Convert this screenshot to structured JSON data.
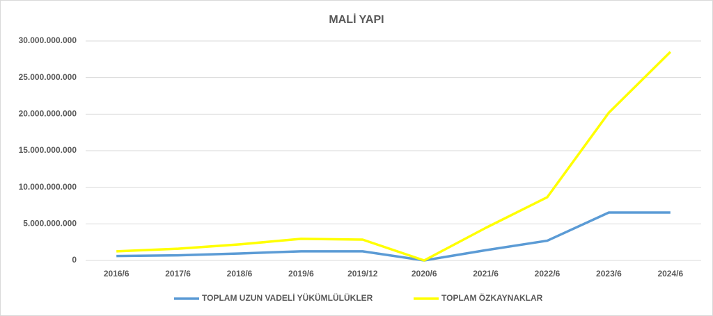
{
  "chart_data": {
    "type": "line",
    "title": "MALİ YAPI",
    "categories": [
      "2016/6",
      "2017/6",
      "2018/6",
      "2019/6",
      "2019/12",
      "2020/6",
      "2021/6",
      "2022/6",
      "2023/6",
      "2024/6"
    ],
    "series": [
      {
        "name": "TOPLAM UZUN VADELİ YÜKÜMLÜLÜKLER",
        "color": "#5b9bd5",
        "values": [
          600000000,
          700000000,
          950000000,
          1250000000,
          1250000000,
          0,
          1400000000,
          2700000000,
          6550000000,
          6550000000
        ]
      },
      {
        "name": "TOPLAM ÖZKAYNAKLAR",
        "color": "#ffff00",
        "values": [
          1250000000,
          1600000000,
          2200000000,
          2950000000,
          2850000000,
          0,
          4450000000,
          8650000000,
          20200000000,
          28500000000
        ]
      }
    ],
    "ylim": [
      0,
      30000000000
    ],
    "yticks": [
      0,
      {
        "value": 5000000000,
        "label": "5.000.000.000"
      },
      {
        "value": 10000000000,
        "label": "10.000.000.000"
      },
      {
        "value": 15000000000,
        "label": "15.000.000.000"
      },
      {
        "value": 20000000000,
        "label": "20.000.000.000"
      },
      {
        "value": 25000000000,
        "label": "25.000.000.000"
      },
      {
        "value": 30000000000,
        "label": "30.000.000.000"
      }
    ],
    "grid": true,
    "legend": "bottom"
  }
}
